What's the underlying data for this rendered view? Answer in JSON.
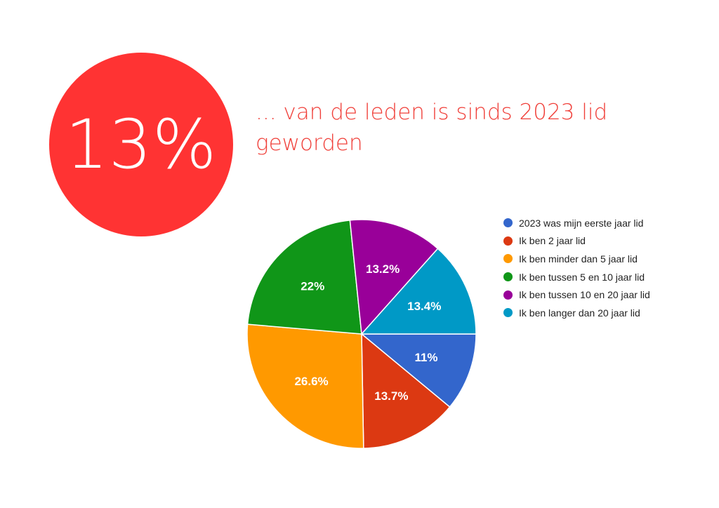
{
  "highlight": {
    "value": "13%",
    "text": "... van de leden is sinds 2023 lid geworden",
    "circle_color": "#ff3333",
    "text_color": "#f0403a"
  },
  "chart_data": {
    "type": "pie",
    "title": "",
    "slices": [
      {
        "label": "2023 was mijn eerste jaar lid",
        "value": 11,
        "display": "11%",
        "color": "#3366cc"
      },
      {
        "label": "Ik ben 2 jaar lid",
        "value": 13.7,
        "display": "13.7%",
        "color": "#dc3912"
      },
      {
        "label": "Ik ben minder dan 5 jaar lid",
        "value": 26.6,
        "display": "26.6%",
        "color": "#ff9900"
      },
      {
        "label": "Ik ben tussen 5 en 10 jaar lid",
        "value": 22,
        "display": "22%",
        "color": "#109618"
      },
      {
        "label": "Ik ben tussen 10 en 20 jaar lid",
        "value": 13.2,
        "display": "13.2%",
        "color": "#990099"
      },
      {
        "label": "Ik ben langer dan 20 jaar lid",
        "value": 13.4,
        "display": "13.4%",
        "color": "#0099c6"
      }
    ],
    "legend_position": "right",
    "label_color": "#ffffff"
  }
}
